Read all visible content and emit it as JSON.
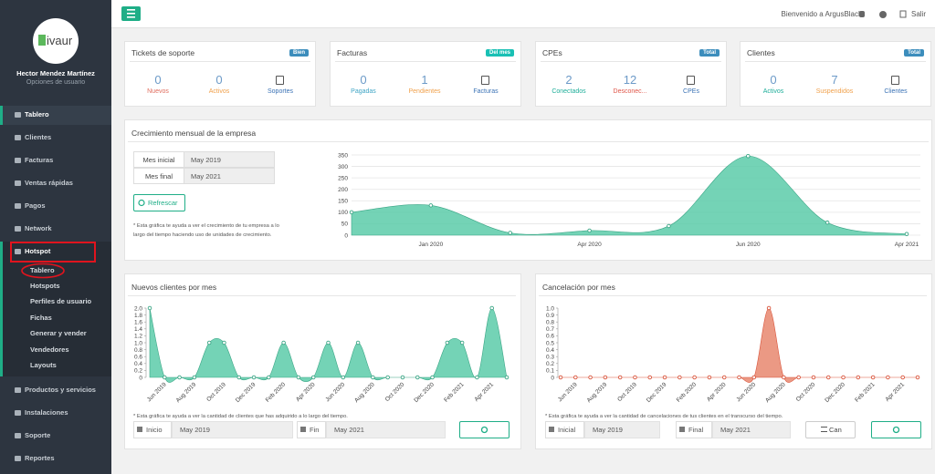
{
  "sidebar": {
    "logo": "ivaur",
    "user": "Hector Mendez Martínez",
    "user_menu": "Opciones de usuario",
    "menu": [
      {
        "label": "Tablero"
      },
      {
        "label": "Clientes"
      },
      {
        "label": "Facturas"
      },
      {
        "label": "Ventas rápidas"
      },
      {
        "label": "Pagos"
      },
      {
        "label": "Network"
      },
      {
        "label": "Hotspot",
        "submenu": [
          "Tablero",
          "Hotspots",
          "Perfiles de usuario",
          "Fichas",
          "Generar y vender",
          "Vendedores",
          "Layouts"
        ]
      },
      {
        "label": "Productos y servicios"
      },
      {
        "label": "Instalaciones"
      },
      {
        "label": "Soporte"
      },
      {
        "label": "Reportes"
      }
    ]
  },
  "topbar": {
    "welcome": "Bienvenido a ArgusBlack",
    "logout": "Salir"
  },
  "cards": [
    {
      "title": "Tickets de soporte",
      "badge": "Bien",
      "stats": [
        {
          "value": 0,
          "label": "Nuevos"
        },
        {
          "value": 0,
          "label": "Activos"
        }
      ],
      "link": "Soportes"
    },
    {
      "title": "Facturas",
      "badge": "Del mes",
      "stats": [
        {
          "value": 0,
          "label": "Pagadas"
        },
        {
          "value": 1,
          "label": "Pendientes"
        }
      ],
      "link": "Facturas"
    },
    {
      "title": "CPEs",
      "badge": "Total",
      "stats": [
        {
          "value": 2,
          "label": "Conectados"
        },
        {
          "value": 12,
          "label": "Desconec..."
        }
      ],
      "link": "CPEs"
    },
    {
      "title": "Clientes",
      "badge": "Total",
      "stats": [
        {
          "value": 0,
          "label": "Activos"
        },
        {
          "value": 7,
          "label": "Suspendidos"
        }
      ],
      "link": "Clientes"
    }
  ],
  "growth": {
    "rows": [
      [
        "Mes inicial",
        "May 2019"
      ],
      [
        "Mes final",
        "May 2021"
      ]
    ],
    "button": "Refrescar",
    "note": "* Esta gráfica te ayuda a ver el crecimiento de tu empresa a lo largo del tiempo haciendo uso de unidades de crecimiento."
  },
  "new_clients": {
    "filters": [
      {
        "label": "Inicio",
        "value": "May 2019"
      },
      {
        "label": "Fin",
        "value": "May 2021"
      }
    ],
    "note": "* Esta gráfica te ayuda a ver la cantidad de clientes que has adquirido a lo largo del tiempo."
  },
  "cancellations": {
    "filters": [
      {
        "label": "Inicial",
        "value": "May 2019"
      },
      {
        "label": "Final",
        "value": "May 2021"
      }
    ],
    "button": "Can",
    "note": "* Esta gráfica te ayuda a ver la cantidad de cancelaciones de tus clientes en el transcurso del tiempo."
  },
  "chart_data": [
    {
      "type": "area",
      "title": "Crecimiento mensual de la empresa",
      "categories": [
        null,
        "Jan 2020",
        null,
        "Apr 2020",
        null,
        "Jun 2020",
        null,
        "Apr 2021"
      ],
      "values": [
        100,
        130,
        10,
        20,
        40,
        345,
        55,
        5
      ],
      "color": "#5ccba9",
      "marker_color": "#3aa585",
      "ylim": [
        0,
        350
      ],
      "yticks": [
        0,
        50,
        100,
        150,
        200,
        250,
        300,
        350
      ],
      "grid": true
    },
    {
      "type": "area",
      "title": "Nuevos clientes por mes",
      "categories": [
        null,
        "Jun 2019",
        null,
        "Aug 2019",
        null,
        "Oct 2019",
        null,
        "Dec 2019",
        null,
        "Feb 2020",
        null,
        "Apr 2020",
        null,
        "Jun 2020",
        null,
        "Aug 2020",
        null,
        "Oct 2020",
        null,
        "Dec 2020",
        null,
        "Feb 2021",
        null,
        "Apr 2021",
        null
      ],
      "values": [
        2,
        0,
        0,
        0,
        1,
        1,
        0,
        0,
        0,
        1,
        0,
        0,
        1,
        0,
        1,
        0,
        0,
        0,
        0,
        0,
        1,
        1,
        0,
        2,
        0
      ],
      "color": "#5ccba9",
      "marker_color": "#3aa585",
      "ylim": [
        0,
        2
      ],
      "yticks": [
        0,
        0.2,
        0.4,
        0.6,
        0.8,
        {
          "value": 1,
          "label": "1.0"
        },
        1.2,
        1.4,
        1.6,
        1.8,
        {
          "value": 2,
          "label": "2.0"
        }
      ],
      "grid": false
    },
    {
      "type": "area",
      "title": "Cancelación por mes",
      "categories": [
        null,
        "Jun 2019",
        null,
        "Aug 2019",
        null,
        "Oct 2019",
        null,
        "Dec 2019",
        null,
        "Feb 2020",
        null,
        "Apr 2020",
        null,
        "Jun 2020",
        null,
        "Aug 2020",
        null,
        "Oct 2020",
        null,
        "Dec 2020",
        null,
        "Feb 2021",
        null,
        "Apr 2021",
        null
      ],
      "values": [
        0,
        0,
        0,
        0,
        0,
        0,
        0,
        0,
        0,
        0,
        0,
        0,
        0,
        0,
        1,
        0,
        0,
        0,
        0,
        0,
        0,
        0,
        0,
        0,
        0
      ],
      "color": "#e8876f",
      "marker_color": "#d9533a",
      "ylim": [
        0,
        1
      ],
      "yticks": [
        0,
        0.1,
        0.2,
        0.3,
        0.4,
        0.5,
        0.6,
        0.7,
        0.8,
        0.9,
        {
          "value": 1,
          "label": "1.0"
        }
      ],
      "grid": false
    }
  ]
}
